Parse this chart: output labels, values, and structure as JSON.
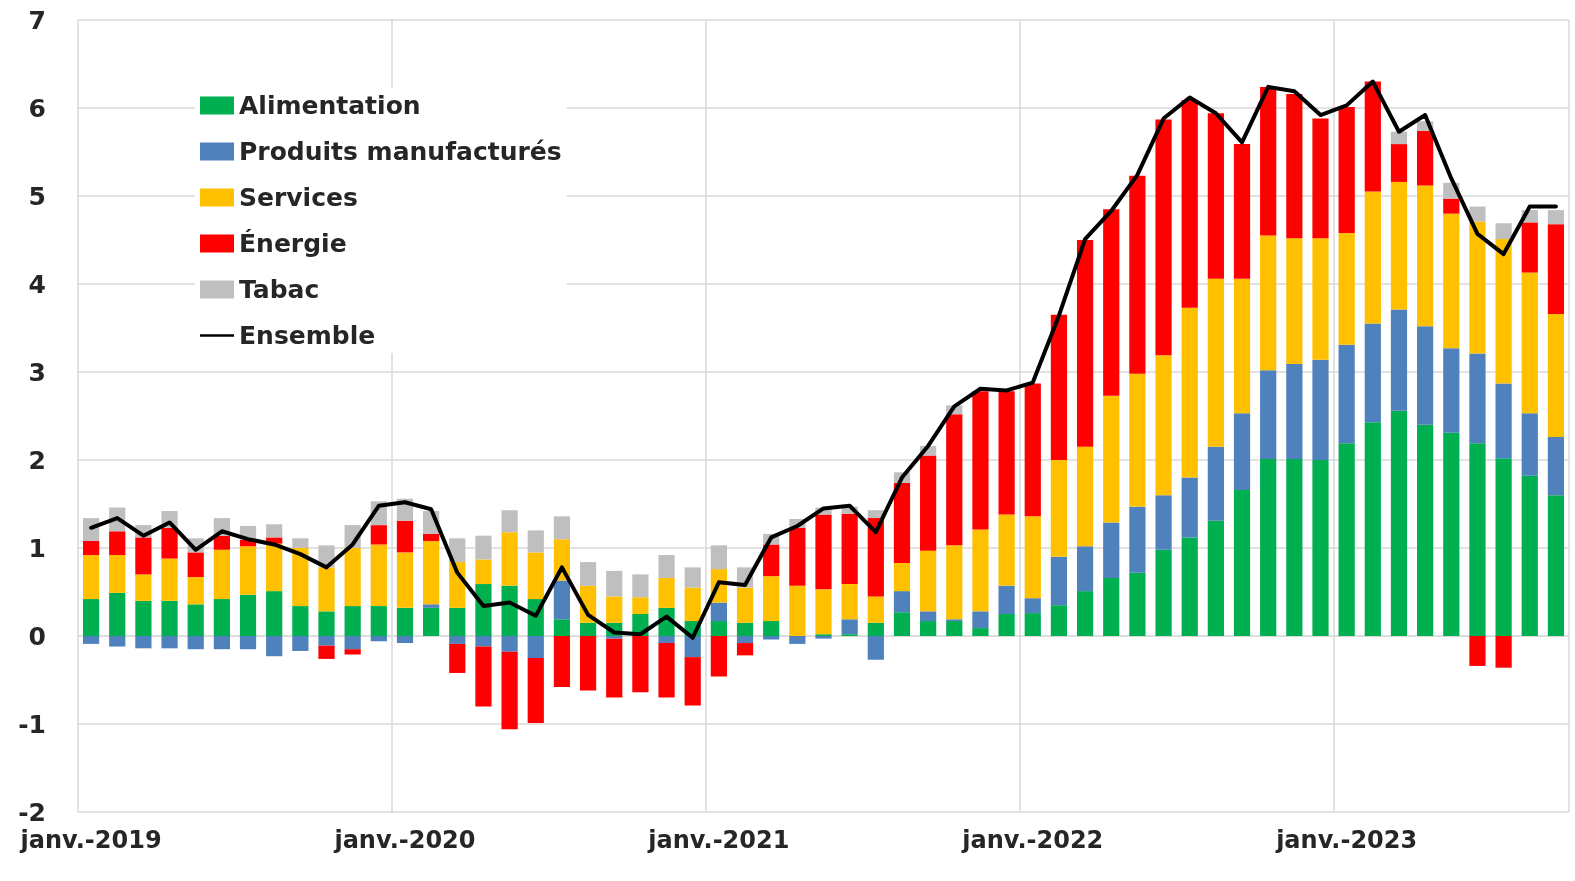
{
  "chart_data": {
    "type": "bar",
    "stacked": true,
    "categories": [
      "janv.-2019",
      null,
      null,
      null,
      null,
      null,
      null,
      null,
      null,
      null,
      null,
      null,
      "janv.-2020",
      null,
      null,
      null,
      null,
      null,
      null,
      null,
      null,
      null,
      null,
      null,
      "janv.-2021",
      null,
      null,
      null,
      null,
      null,
      null,
      null,
      null,
      null,
      null,
      null,
      "janv.-2022",
      null,
      null,
      null,
      null,
      null,
      null,
      null,
      null,
      null,
      null,
      null,
      "janv.-2023",
      null,
      null,
      null,
      null,
      null,
      null,
      null,
      null
    ],
    "ylim": [
      -2,
      7
    ],
    "yticks": [
      -2,
      -1,
      0,
      1,
      2,
      3,
      4,
      5,
      6,
      7
    ],
    "grid": true,
    "legend": "top left",
    "marker": "none",
    "line_style": "solid",
    "series": [
      {
        "name": "Alimentation",
        "color": "#00b050",
        "values": [
          0.42,
          0.49,
          0.4,
          0.4,
          0.36,
          0.42,
          0.47,
          0.51,
          0.34,
          0.28,
          0.34,
          0.34,
          0.32,
          0.32,
          0.32,
          0.59,
          0.57,
          0.42,
          0.19,
          0.15,
          0.15,
          0.25,
          0.32,
          0.17,
          0.17,
          0.15,
          0.17,
          0,
          0.02,
          0.02,
          0.15,
          0.27,
          0.17,
          0.17,
          0.09,
          0.25,
          0.26,
          0.35,
          0.51,
          0.66,
          0.72,
          0.98,
          1.12,
          1.31,
          1.66,
          2.01,
          2.01,
          2.0,
          2.19,
          2.43,
          2.56,
          2.4,
          2.31,
          2.19,
          2.02,
          1.82,
          1.6
        ]
      },
      {
        "name": "Produits manufacturés",
        "color": "#4f81bd",
        "values": [
          -0.09,
          -0.12,
          -0.14,
          -0.14,
          -0.15,
          -0.15,
          -0.15,
          -0.23,
          -0.17,
          -0.11,
          -0.15,
          -0.06,
          -0.08,
          0.04,
          -0.09,
          -0.12,
          -0.18,
          -0.25,
          0.44,
          0,
          -0.03,
          0,
          -0.08,
          -0.24,
          0.21,
          -0.08,
          -0.04,
          -0.09,
          -0.03,
          0.17,
          -0.27,
          0.24,
          0.11,
          0.02,
          0.19,
          0.32,
          0.17,
          0.55,
          0.51,
          0.63,
          0.75,
          0.62,
          0.68,
          0.84,
          0.87,
          1.01,
          1.08,
          1.14,
          1.12,
          1.12,
          1.15,
          1.12,
          0.96,
          1.02,
          0.85,
          0.71,
          0.66
        ]
      },
      {
        "name": "Services",
        "color": "#ffc000",
        "values": [
          0.5,
          0.43,
          0.3,
          0.48,
          0.31,
          0.56,
          0.55,
          0.54,
          0.66,
          0.5,
          0.66,
          0.7,
          0.63,
          0.72,
          0.52,
          0.28,
          0.61,
          0.53,
          0.47,
          0.42,
          0.3,
          0.19,
          0.34,
          0.38,
          0.38,
          0.4,
          0.51,
          0.57,
          0.51,
          0.4,
          0.3,
          0.32,
          0.69,
          0.84,
          0.93,
          0.81,
          0.93,
          1.1,
          1.13,
          1.44,
          1.51,
          1.59,
          1.93,
          1.91,
          1.53,
          1.53,
          1.43,
          1.38,
          1.27,
          1.5,
          1.45,
          1.6,
          1.53,
          1.5,
          1.64,
          1.6,
          1.4
        ]
      },
      {
        "name": "Énergie",
        "color": "#ff0000",
        "values": [
          0.16,
          0.27,
          0.42,
          0.35,
          0.28,
          0.16,
          0.07,
          0.07,
          0,
          -0.15,
          -0.06,
          0.22,
          0.36,
          0.08,
          -0.33,
          -0.68,
          -0.88,
          -0.74,
          -0.58,
          -0.62,
          -0.67,
          -0.64,
          -0.62,
          -0.55,
          -0.46,
          -0.14,
          0.36,
          0.66,
          0.85,
          0.8,
          0.89,
          0.91,
          1.08,
          1.49,
          1.57,
          1.4,
          1.51,
          1.65,
          2.35,
          2.12,
          2.25,
          2.68,
          2.36,
          1.88,
          1.53,
          1.69,
          1.64,
          1.36,
          1.43,
          1.25,
          0.43,
          0.62,
          0.17,
          -0.34,
          -0.36,
          0.57,
          1.02
        ]
      },
      {
        "name": "Tabac",
        "color": "#bfbfbf",
        "values": [
          0.26,
          0.27,
          0.14,
          0.19,
          0.16,
          0.2,
          0.16,
          0.15,
          0.11,
          0.25,
          0.26,
          0.27,
          0.25,
          0.26,
          0.27,
          0.27,
          0.25,
          0.25,
          0.26,
          0.27,
          0.29,
          0.26,
          0.26,
          0.23,
          0.27,
          0.23,
          0.12,
          0.1,
          0.08,
          0.08,
          0.09,
          0.12,
          0.11,
          0.1,
          0,
          0,
          0,
          0,
          0,
          0,
          0,
          0,
          0,
          0,
          0,
          0,
          0,
          0,
          0,
          0,
          0.14,
          0.11,
          0.18,
          0.17,
          0.18,
          0.14,
          0.16
        ]
      },
      {
        "name": "Ensemble",
        "type": "line",
        "color": "#000000",
        "values": [
          1.23,
          1.34,
          1.14,
          1.29,
          0.98,
          1.19,
          1.1,
          1.04,
          0.93,
          0.78,
          1.04,
          1.48,
          1.52,
          1.44,
          0.72,
          0.34,
          0.38,
          0.23,
          0.78,
          0.24,
          0.04,
          0.02,
          0.22,
          -0.02,
          0.61,
          0.58,
          1.12,
          1.25,
          1.45,
          1.48,
          1.18,
          1.8,
          2.16,
          2.61,
          2.81,
          2.79,
          2.88,
          3.64,
          4.51,
          4.83,
          5.24,
          5.88,
          6.12,
          5.94,
          5.61,
          6.24,
          6.19,
          5.92,
          6.03,
          6.3,
          5.73,
          5.92,
          5.2,
          4.57,
          4.34,
          4.88,
          4.88
        ]
      }
    ]
  }
}
